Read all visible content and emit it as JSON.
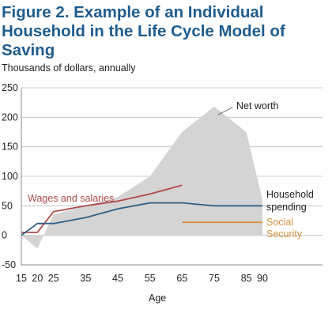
{
  "chart_data": {
    "type": "line",
    "title": "Figure 2. Example  of an Individual\nHousehold in the Life Cycle Model of Saving",
    "ylabel": "Thousands of dollars, annually",
    "xlabel": "Age",
    "ylim": [
      -50,
      250
    ],
    "yticks": [
      250,
      200,
      150,
      100,
      50,
      0,
      -50
    ],
    "xticks": [
      15,
      20,
      25,
      35,
      45,
      55,
      65,
      75,
      85,
      90
    ],
    "grid": true,
    "series": [
      {
        "name": "Net worth",
        "style": "area",
        "color": "#d4d4d4",
        "x": [
          15,
          20,
          25,
          35,
          45,
          55,
          65,
          75,
          85,
          90,
          90
        ],
        "y": [
          0,
          -22,
          35,
          50,
          65,
          100,
          175,
          218,
          175,
          60,
          0
        ]
      },
      {
        "name": "Wages and salaries",
        "color": "#b04a4a",
        "x": [
          15,
          20,
          25,
          35,
          45,
          55,
          65
        ],
        "y": [
          5,
          5,
          40,
          50,
          58,
          70,
          85
        ]
      },
      {
        "name": "Household spending",
        "color": "#2d5f86",
        "x": [
          15,
          20,
          25,
          35,
          45,
          55,
          65,
          75,
          85,
          90
        ],
        "y": [
          0,
          20,
          20,
          30,
          45,
          55,
          55,
          50,
          50,
          50
        ]
      },
      {
        "name": "Social Security",
        "color": "#d8903f",
        "x": [
          65,
          90
        ],
        "y": [
          22,
          22
        ]
      }
    ],
    "annotations": {
      "net_worth": "Net worth",
      "wages": "Wages and salaries",
      "spending_line1": "Household",
      "spending_line2": "spending",
      "ss_line1": "Social",
      "ss_line2": "Security"
    }
  },
  "colors": {
    "title": "#1f5c8e",
    "axis": "#8a8a8a",
    "grid": "#bdbdbd"
  }
}
